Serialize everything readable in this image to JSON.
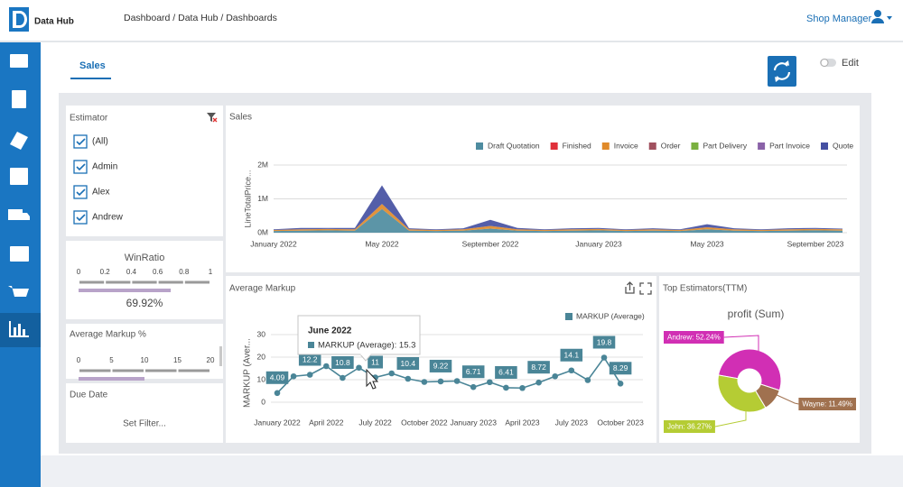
{
  "header": {
    "app_name": "Data Hub",
    "breadcrumb": "Dashboard / Data Hub / Dashboards",
    "user": "Shop Manager"
  },
  "tabs": [
    "Sales"
  ],
  "edit_label": "Edit",
  "estimator": {
    "title": "Estimator",
    "items": [
      "(All)",
      "Admin",
      "Alex",
      "Andrew"
    ]
  },
  "win_ratio": {
    "title": "WinRatio",
    "lim": [
      0,
      1
    ],
    "ticks": [
      0,
      0.2,
      0.4,
      0.6,
      0.8,
      1
    ],
    "value": 0.6992,
    "value_label": "69.92%",
    "color": "#b8a3c9"
  },
  "avg_markup_pct": {
    "title": "Average Markup %",
    "lim": [
      0,
      20
    ],
    "ticks": [
      0,
      5,
      10,
      15,
      20
    ],
    "value": 10,
    "color": "#b8a3c9"
  },
  "due_date": {
    "title": "Due Date",
    "action": "Set Filter..."
  },
  "chart_data": [
    {
      "type": "area",
      "stacked": true,
      "title": "Sales",
      "y_label": "LineTotalPrice...",
      "categories": [
        "January 2022",
        null,
        null,
        null,
        "May 2022",
        null,
        null,
        null,
        "September 2022",
        null,
        null,
        null,
        "January 2023",
        null,
        null,
        null,
        "May 2023",
        null,
        null,
        null,
        "September 2023",
        null
      ],
      "series": [
        {
          "name": "Draft Quotation",
          "color": "#4e8ca0",
          "values": [
            50000,
            60000,
            70000,
            60000,
            700000,
            60000,
            50000,
            60000,
            120000,
            60000,
            50000,
            60000,
            70000,
            50000,
            60000,
            50000,
            100000,
            60000,
            50000,
            60000,
            70000,
            60000
          ]
        },
        {
          "name": "Finished",
          "color": "#e0303a",
          "values": [
            0,
            0,
            0,
            0,
            0,
            0,
            0,
            0,
            0,
            0,
            0,
            0,
            0,
            0,
            0,
            0,
            0,
            0,
            0,
            0,
            0,
            0
          ]
        },
        {
          "name": "Invoice",
          "color": "#e08a2a",
          "values": [
            30000,
            40000,
            40000,
            40000,
            150000,
            40000,
            30000,
            40000,
            80000,
            40000,
            30000,
            40000,
            40000,
            30000,
            40000,
            30000,
            60000,
            40000,
            30000,
            40000,
            40000,
            40000
          ]
        },
        {
          "name": "Order",
          "color": "#a0505e",
          "values": [
            0,
            0,
            0,
            0,
            0,
            0,
            0,
            0,
            0,
            0,
            0,
            0,
            0,
            0,
            0,
            0,
            0,
            0,
            0,
            0,
            0,
            0
          ]
        },
        {
          "name": "Part Delivery",
          "color": "#7ab040",
          "values": [
            0,
            0,
            0,
            0,
            0,
            0,
            0,
            0,
            0,
            0,
            0,
            0,
            0,
            0,
            0,
            0,
            0,
            0,
            0,
            0,
            0,
            0
          ]
        },
        {
          "name": "Part Invoice",
          "color": "#8a62a8",
          "values": [
            0,
            0,
            0,
            0,
            0,
            0,
            0,
            0,
            0,
            0,
            0,
            0,
            0,
            0,
            0,
            0,
            0,
            0,
            0,
            0,
            0,
            0
          ]
        },
        {
          "name": "Quote",
          "color": "#4550a2",
          "values": [
            20000,
            40000,
            30000,
            40000,
            550000,
            30000,
            20000,
            30000,
            180000,
            40000,
            20000,
            30000,
            30000,
            20000,
            30000,
            20000,
            90000,
            30000,
            20000,
            30000,
            30000,
            20000
          ]
        }
      ],
      "ylim": [
        0,
        2000000
      ],
      "yticks": [
        {
          "value": 0,
          "label": "0M"
        },
        {
          "value": 1000000,
          "label": "1M"
        },
        {
          "value": 2000000,
          "label": "2M"
        }
      ],
      "grid": true,
      "legend": "top-right"
    },
    {
      "type": "line",
      "title": "Average Markup",
      "y_label": "MARKUP (Aver...",
      "categories": [
        "January 2022",
        null,
        null,
        "April 2022",
        null,
        null,
        "July 2022",
        null,
        null,
        "October 2022",
        null,
        null,
        "January 2023",
        null,
        null,
        "April 2023",
        null,
        null,
        "July 2023",
        null,
        null,
        "October 2023"
      ],
      "series": [
        {
          "name": "MARKUP (Average)",
          "color": "#4a8597",
          "values": [
            4.09,
            11.5,
            12.2,
            16,
            10.8,
            15.3,
            11,
            12.8,
            10.4,
            9,
            9.22,
            9.4,
            6.71,
            8.9,
            6.41,
            6.3,
            8.72,
            11.5,
            14.1,
            9.8,
            19.8,
            8.29
          ],
          "value_labels": [
            "4.09",
            null,
            "12.2",
            null,
            "10.8",
            null,
            "11",
            null,
            "10.4",
            null,
            "9.22",
            null,
            "6.71",
            null,
            "6.41",
            null,
            "8.72",
            null,
            "14.1",
            null,
            "19.8",
            "8.29"
          ]
        }
      ],
      "ylim": [
        0,
        30
      ],
      "yticks": [
        0,
        10,
        20,
        30
      ],
      "grid": true,
      "legend": "top-right",
      "tooltip": {
        "title": "June 2022",
        "text": "MARKUP (Average): 15.3"
      }
    },
    {
      "type": "pie",
      "donut": true,
      "title": "Top Estimators(TTM)",
      "subtitle": "profit (Sum)",
      "categories": [
        "Andrew",
        "Wayne",
        "John"
      ],
      "values": [
        52.24,
        11.49,
        36.27
      ],
      "value_labels": [
        "Andrew: 52.24%",
        "Wayne: 11.49%",
        "John: 36.27%"
      ],
      "colors": [
        "#d12fb4",
        "#a0714f",
        "#b5cc34"
      ]
    }
  ]
}
